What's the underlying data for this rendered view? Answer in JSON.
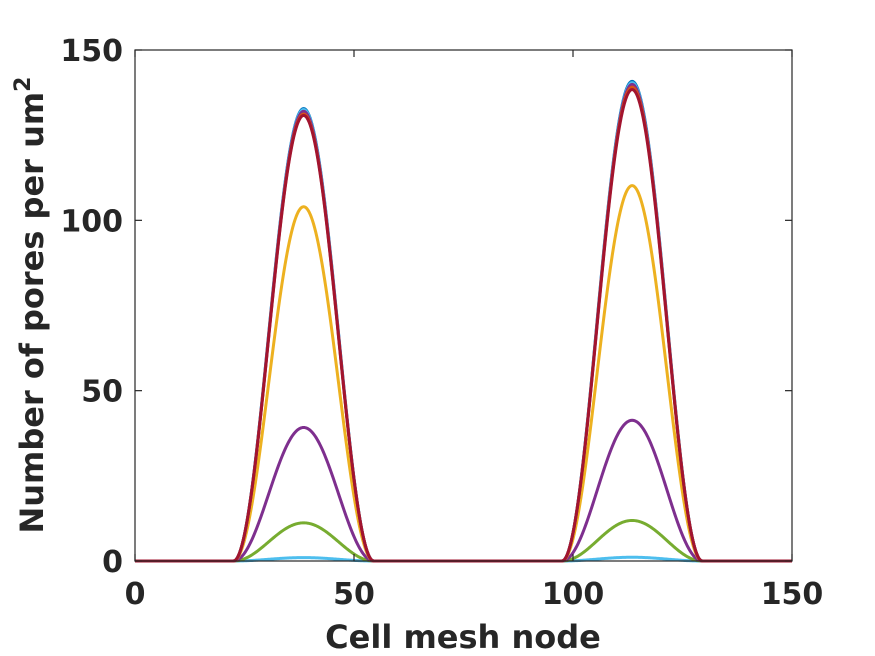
{
  "chart_data": {
    "type": "line",
    "title": "",
    "xlabel": "Cell mesh node",
    "ylabel_main": "Number of pores per um",
    "ylabel_sup": "2",
    "xlim": [
      0,
      150
    ],
    "ylim": [
      0,
      150
    ],
    "xticks": [
      0,
      50,
      100,
      150
    ],
    "yticks": [
      0,
      50,
      100,
      150
    ],
    "xtick_labels": [
      "0",
      "50",
      "100",
      "150"
    ],
    "ytick_labels": [
      "0",
      "50",
      "100",
      "150"
    ],
    "grid": false,
    "legend": "none",
    "peaks": [
      {
        "center": 38.5,
        "start": 22.5,
        "end": 54.5
      },
      {
        "center": 113.5,
        "start": 97.5,
        "end": 129.5
      }
    ],
    "series": [
      {
        "color": "#4DBEEE",
        "peak_values": [
          1.0,
          1.1
        ]
      },
      {
        "color": "#77AC30",
        "peak_values": [
          11.2,
          11.9
        ]
      },
      {
        "color": "#7E2F8E",
        "peak_values": [
          39.2,
          41.3
        ]
      },
      {
        "color": "#EDB120",
        "peak_values": [
          104.0,
          110.2
        ]
      },
      {
        "color": "#0072BD",
        "peak_values": [
          132.8,
          140.8
        ]
      },
      {
        "color": "#4DBEEE",
        "peak_values": [
          132.5,
          140.4
        ]
      },
      {
        "color": "#7E2F8E",
        "peak_values": [
          132.0,
          139.9
        ]
      },
      {
        "color": "#D95319",
        "peak_values": [
          131.2,
          139.1
        ]
      },
      {
        "color": "#A2142F",
        "peak_values": [
          130.8,
          138.4
        ]
      }
    ]
  }
}
